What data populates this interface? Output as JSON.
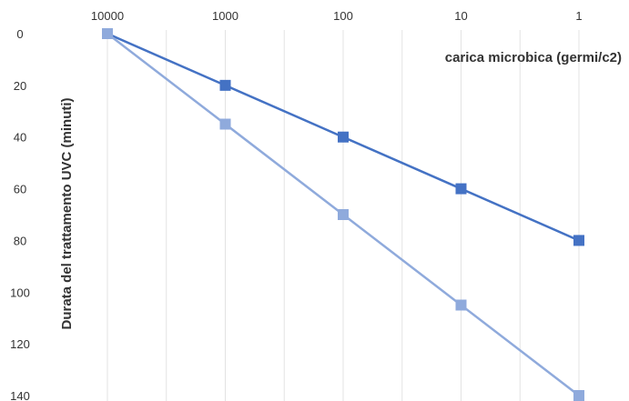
{
  "chart_data": {
    "type": "line",
    "title": "",
    "xlabel": "carica microbica (germi/c2)",
    "ylabel": "Durata del trattamento UVC (minuti)",
    "categories": [
      "10000",
      "1000",
      "100",
      "10",
      "1"
    ],
    "x_scale": "log",
    "x_position": "top",
    "y_inverted": true,
    "ylim": [
      0,
      140
    ],
    "y_ticks": [
      0,
      20,
      40,
      60,
      80,
      100,
      120,
      140
    ],
    "grid": "vertical",
    "legend": "none",
    "series": [
      {
        "values": [
          0,
          20,
          40,
          60,
          80
        ],
        "color": "#4472C4",
        "marker": "square"
      },
      {
        "values": [
          0,
          35,
          70,
          105,
          140
        ],
        "color": "#8FAADC",
        "marker": "square"
      }
    ]
  }
}
